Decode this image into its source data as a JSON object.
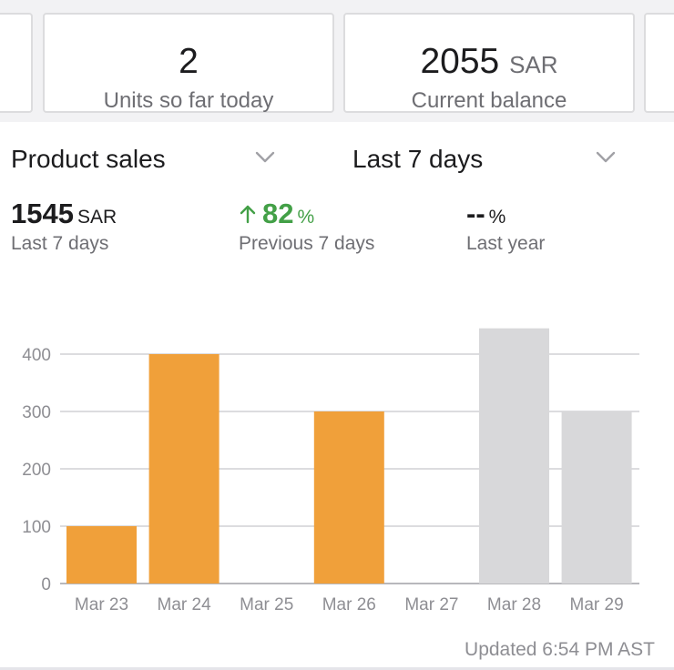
{
  "summary_cards": [
    {
      "value": "2",
      "unit": "",
      "label": "Units so far today"
    },
    {
      "value": "2055",
      "unit": "SAR",
      "label": "Current balance"
    }
  ],
  "selectors": {
    "metric": "Product sales",
    "range": "Last 7 days"
  },
  "stats": {
    "current": {
      "value": "1545",
      "unit": "SAR",
      "label": "Last 7 days"
    },
    "previous": {
      "value": "82",
      "unit": "%",
      "label": "Previous 7 days",
      "trend_icon": "arrow-up-icon"
    },
    "last_year": {
      "value": "--",
      "unit": "%",
      "label": "Last year"
    }
  },
  "footer": {
    "updated": "Updated 6:54 PM AST"
  },
  "colors": {
    "current_bar": "#f0a03a",
    "previous_bar": "#d8d8da",
    "positive": "#43a047",
    "grid": "#c7c7cc",
    "axis_text": "#8e8e93"
  },
  "chart_data": {
    "type": "bar",
    "title": "Product sales",
    "xlabel": "",
    "ylabel": "",
    "categories": [
      "Mar 23",
      "Mar 24",
      "Mar 25",
      "Mar 26",
      "Mar 27",
      "Mar 28",
      "Mar 29"
    ],
    "series": [
      {
        "name": "Last 7 days",
        "values": [
          100,
          400,
          0,
          300,
          0,
          null,
          null
        ]
      },
      {
        "name": "Previous 7 days",
        "values": [
          null,
          null,
          null,
          null,
          null,
          445,
          300
        ]
      }
    ],
    "ylim": [
      0,
      400
    ],
    "yticks": [
      0,
      100,
      200,
      300,
      400
    ],
    "grid": true
  }
}
